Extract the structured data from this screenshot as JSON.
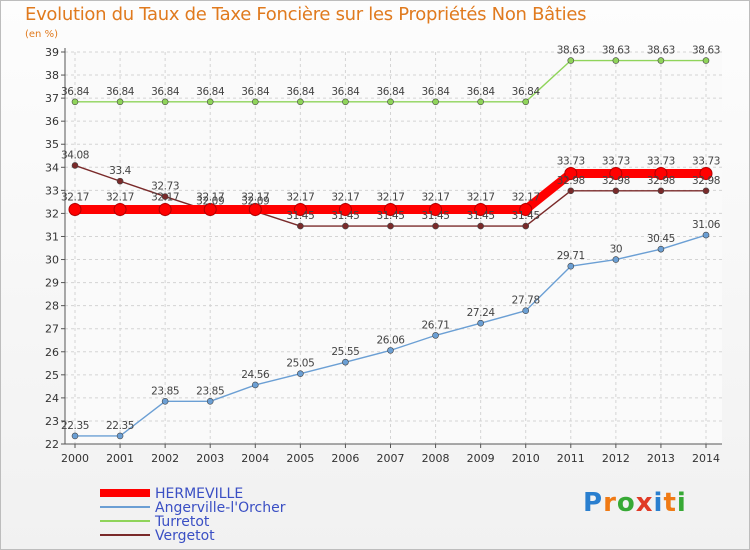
{
  "title": "Evolution du Taux de Taxe Foncière sur les Propriétés Non Bâties",
  "subtitle": "(en %)",
  "logo": {
    "letters": [
      "P",
      "r",
      "o",
      "x",
      "i",
      "t",
      "i"
    ],
    "colors": [
      "#2a7fcf",
      "#f07a14",
      "#37a935",
      "#e03a26",
      "#2a7fcf",
      "#f07a14",
      "#37a935"
    ]
  },
  "chart_data": {
    "type": "line",
    "title": "Evolution du Taux de Taxe Foncière sur les Propriétés Non Bâties",
    "ylabel": "(en %)",
    "xlabel": "",
    "x": [
      "2000",
      "2001",
      "2002",
      "2003",
      "2004",
      "2005",
      "2006",
      "2007",
      "2008",
      "2009",
      "2010",
      "2011",
      "2012",
      "2013",
      "2014"
    ],
    "ylim": [
      22,
      39
    ],
    "yticks": [
      22,
      23,
      24,
      25,
      26,
      27,
      28,
      29,
      30,
      31,
      32,
      33,
      34,
      35,
      36,
      37,
      38,
      39
    ],
    "grid": true,
    "legend_position": "bottom-left",
    "series": [
      {
        "name": "HERMEVILLE",
        "color": "#ff0000",
        "bold": true,
        "values": [
          32.17,
          32.17,
          32.17,
          32.17,
          32.17,
          32.17,
          32.17,
          32.17,
          32.17,
          32.17,
          32.17,
          33.73,
          33.73,
          33.73,
          33.73
        ],
        "labels": [
          "32.17",
          "32.17",
          "32.17",
          "32.17",
          "32.17",
          "32.17",
          "32.17",
          "32.17",
          "32.17",
          "32.17",
          "32.17",
          "33.73",
          "33.73",
          "33.73",
          "33.73"
        ]
      },
      {
        "name": "Angerville-l'Orcher",
        "color": "#6b9fd4",
        "bold": false,
        "values": [
          22.35,
          22.35,
          23.85,
          23.85,
          24.56,
          25.05,
          25.55,
          26.06,
          26.71,
          27.24,
          27.78,
          29.71,
          30,
          30.45,
          31.06
        ],
        "labels": [
          "22.35",
          "22.35",
          "23.85",
          "23.85",
          "24.56",
          "25.05",
          "25.55",
          "26.06",
          "26.71",
          "27.24",
          "27.78",
          "29.71",
          "30",
          "30.45",
          "31.06"
        ]
      },
      {
        "name": "Turretot",
        "color": "#8fd45a",
        "bold": false,
        "values": [
          36.84,
          36.84,
          36.84,
          36.84,
          36.84,
          36.84,
          36.84,
          36.84,
          36.84,
          36.84,
          36.84,
          38.63,
          38.63,
          38.63,
          38.63
        ],
        "labels": [
          "36.84",
          "36.84",
          "36.84",
          "36.84",
          "36.84",
          "36.84",
          "36.84",
          "36.84",
          "36.84",
          "36.84",
          "36.84",
          "38.63",
          "38.63",
          "38.63",
          "38.63"
        ]
      },
      {
        "name": "Vergetot",
        "color": "#7a2a2a",
        "bold": false,
        "values": [
          34.08,
          33.4,
          32.73,
          32.09,
          32.09,
          31.45,
          31.45,
          31.45,
          31.45,
          31.45,
          31.45,
          32.98,
          32.98,
          32.98,
          32.98
        ],
        "labels": [
          "34.08",
          "33.4",
          "32.73",
          "32.09",
          "32.09",
          "31.45",
          "31.45",
          "31.45",
          "31.45",
          "31.45",
          "31.45",
          "32.98",
          "32.98",
          "32.98",
          "32.98"
        ]
      }
    ]
  }
}
